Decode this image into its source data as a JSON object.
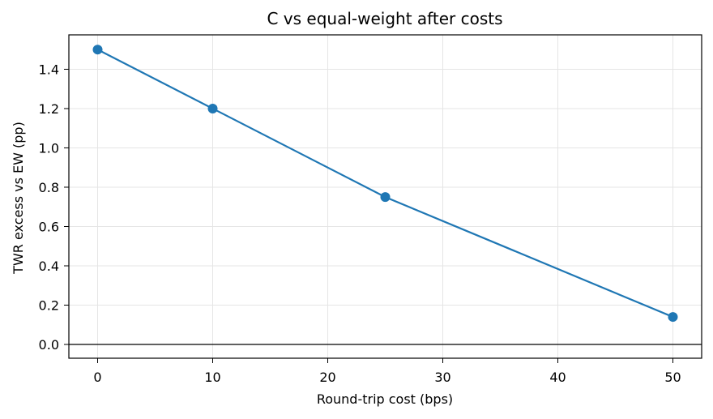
{
  "chart_data": {
    "type": "line",
    "title": "C vs equal-weight after costs",
    "xlabel": "Round-trip cost (bps)",
    "ylabel": "TWR excess vs EW (pp)",
    "xlim": [
      -2.5,
      52.5
    ],
    "ylim": [
      -0.07,
      1.575
    ],
    "x_ticks": [
      0,
      10,
      20,
      30,
      40,
      50
    ],
    "y_ticks": [
      0.0,
      0.2,
      0.4,
      0.6,
      0.8,
      1.0,
      1.2,
      1.4
    ],
    "x_tick_labels": [
      "0",
      "10",
      "20",
      "30",
      "40",
      "50"
    ],
    "y_tick_labels": [
      "0.0",
      "0.2",
      "0.4",
      "0.6",
      "0.8",
      "1.0",
      "1.2",
      "1.4"
    ],
    "grid": true,
    "reference_line_y": 0,
    "series": [
      {
        "color": "#1f77b4",
        "x": [
          0,
          10,
          25,
          50
        ],
        "y": [
          1.5,
          1.2,
          0.75,
          0.14
        ]
      }
    ]
  }
}
